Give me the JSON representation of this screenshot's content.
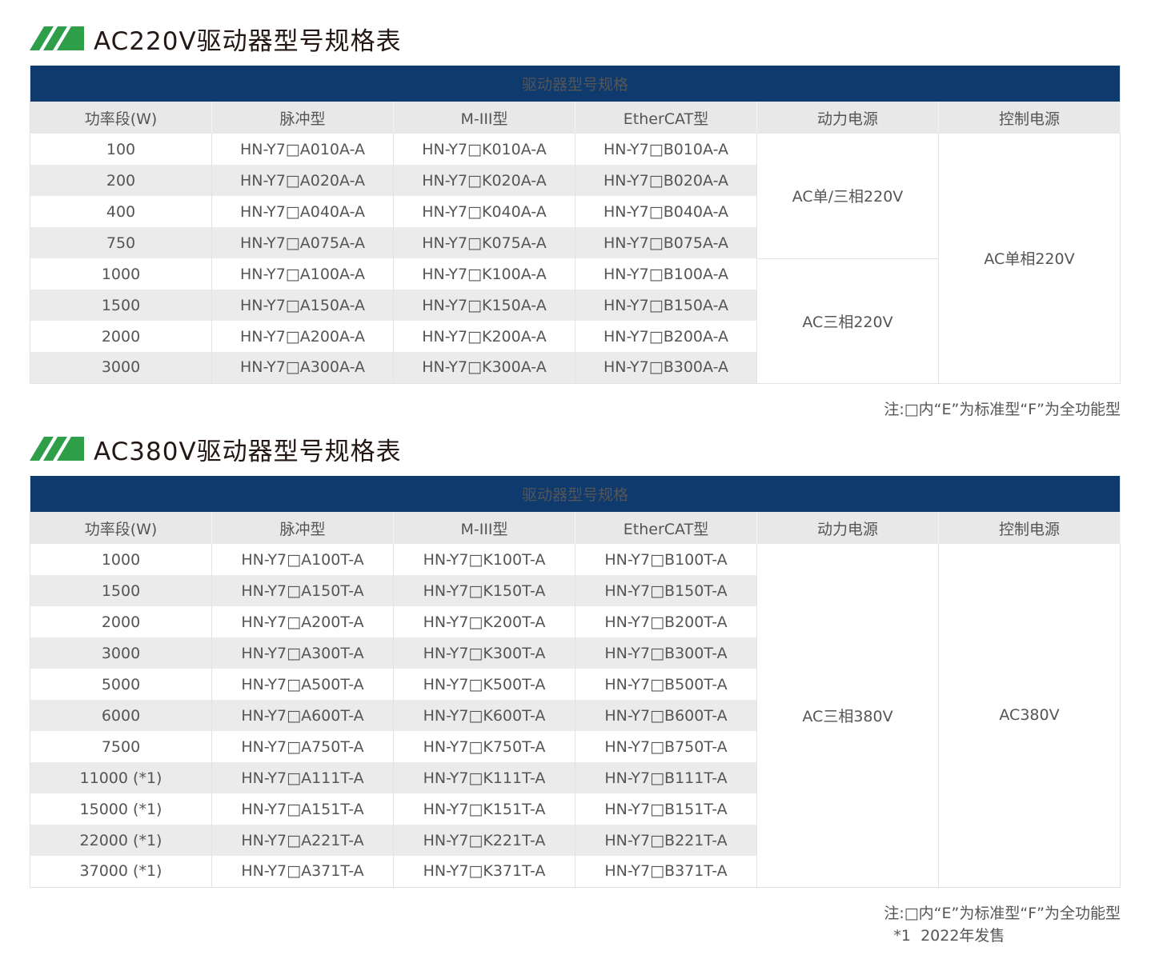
{
  "colors": {
    "navy": "#0f3a6e",
    "green": "#2e9e48",
    "stripe": "#ebebeb"
  },
  "tables": [
    {
      "title": "AC220V驱动器型号规格表",
      "bar": "驱动器型号规格",
      "headers": [
        "功率段(W)",
        "脉冲型",
        "M-III型",
        "EtherCAT型",
        "动力电源",
        "控制电源"
      ],
      "rows": [
        [
          "100",
          "HN-Y7□A010A-A",
          "HN-Y7□K010A-A",
          "HN-Y7□B010A-A"
        ],
        [
          "200",
          "HN-Y7□A020A-A",
          "HN-Y7□K020A-A",
          "HN-Y7□B020A-A"
        ],
        [
          "400",
          "HN-Y7□A040A-A",
          "HN-Y7□K040A-A",
          "HN-Y7□B040A-A"
        ],
        [
          "750",
          "HN-Y7□A075A-A",
          "HN-Y7□K075A-A",
          "HN-Y7□B075A-A"
        ],
        [
          "1000",
          "HN-Y7□A100A-A",
          "HN-Y7□K100A-A",
          "HN-Y7□B100A-A"
        ],
        [
          "1500",
          "HN-Y7□A150A-A",
          "HN-Y7□K150A-A",
          "HN-Y7□B150A-A"
        ],
        [
          "2000",
          "HN-Y7□A200A-A",
          "HN-Y7□K200A-A",
          "HN-Y7□B200A-A"
        ],
        [
          "3000",
          "HN-Y7□A300A-A",
          "HN-Y7□K300A-A",
          "HN-Y7□B300A-A"
        ]
      ],
      "power": [
        {
          "text": "AC单/三相220V",
          "span": 4
        },
        {
          "text": "AC三相220V",
          "span": 4
        }
      ],
      "control": [
        {
          "text": "AC单相220V",
          "span": 8
        }
      ],
      "notes": [
        "注:□内“E”为标准型“F”为全功能型"
      ]
    },
    {
      "title": "AC380V驱动器型号规格表",
      "bar": "驱动器型号规格",
      "headers": [
        "功率段(W)",
        "脉冲型",
        "M-III型",
        "EtherCAT型",
        "动力电源",
        "控制电源"
      ],
      "rows": [
        [
          "1000",
          "HN-Y7□A100T-A",
          "HN-Y7□K100T-A",
          "HN-Y7□B100T-A"
        ],
        [
          "1500",
          "HN-Y7□A150T-A",
          "HN-Y7□K150T-A",
          "HN-Y7□B150T-A"
        ],
        [
          "2000",
          "HN-Y7□A200T-A",
          "HN-Y7□K200T-A",
          "HN-Y7□B200T-A"
        ],
        [
          "3000",
          "HN-Y7□A300T-A",
          "HN-Y7□K300T-A",
          "HN-Y7□B300T-A"
        ],
        [
          "5000",
          "HN-Y7□A500T-A",
          "HN-Y7□K500T-A",
          "HN-Y7□B500T-A"
        ],
        [
          "6000",
          "HN-Y7□A600T-A",
          "HN-Y7□K600T-A",
          "HN-Y7□B600T-A"
        ],
        [
          "7500",
          "HN-Y7□A750T-A",
          "HN-Y7□K750T-A",
          "HN-Y7□B750T-A"
        ],
        [
          "11000 (*1)",
          "HN-Y7□A111T-A",
          "HN-Y7□K111T-A",
          "HN-Y7□B111T-A"
        ],
        [
          "15000 (*1)",
          "HN-Y7□A151T-A",
          "HN-Y7□K151T-A",
          "HN-Y7□B151T-A"
        ],
        [
          "22000 (*1)",
          "HN-Y7□A221T-A",
          "HN-Y7□K221T-A",
          "HN-Y7□B221T-A"
        ],
        [
          "37000 (*1)",
          "HN-Y7□A371T-A",
          "HN-Y7□K371T-A",
          "HN-Y7□B371T-A"
        ]
      ],
      "power": [
        {
          "text": "AC三相380V",
          "span": 11
        }
      ],
      "control": [
        {
          "text": "AC380V",
          "span": 11
        }
      ],
      "notes": [
        "注:□内“E”为标准型“F”为全功能型",
        "  *1  2022年发售"
      ]
    }
  ]
}
